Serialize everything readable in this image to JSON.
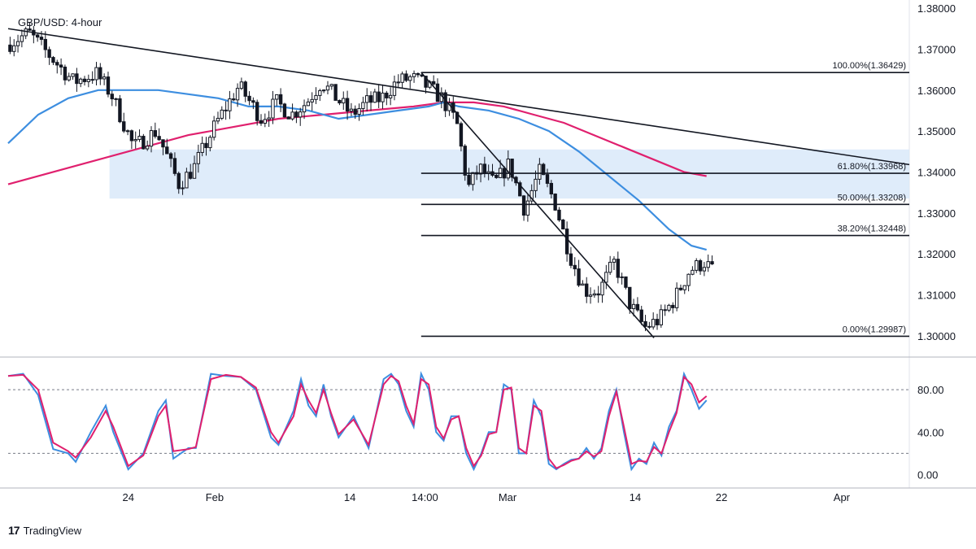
{
  "header": {
    "title": "GBP/USD: 4-hour"
  },
  "brand": {
    "logo_mark": "17",
    "name": "TradingView"
  },
  "colors": {
    "candle": "#131722",
    "ma_fast": "#3d8ee0",
    "ma_slow": "#e0206e",
    "zone": "#d7e7f9",
    "stoch_k": "#3d8ee0",
    "stoch_d": "#e0206e",
    "grid_line": "#131722"
  },
  "chart_data": [
    {
      "type": "candlestick",
      "ylim": [
        1.295,
        1.382
      ],
      "xlim": [
        0,
        120
      ],
      "y_ticks": [
        "1.38000",
        "1.37000",
        "1.36000",
        "1.35000",
        "1.34000",
        "1.33000",
        "1.32000",
        "1.31000",
        "1.30000"
      ],
      "y_tick_values": [
        1.38,
        1.37,
        1.36,
        1.35,
        1.34,
        1.33,
        1.32,
        1.31,
        1.3
      ],
      "x_ticks": [
        {
          "label": "24",
          "x": 16
        },
        {
          "label": "Feb",
          "x": 27.5
        },
        {
          "label": "14",
          "x": 45.5
        },
        {
          "label": "14:00",
          "x": 55.5
        },
        {
          "label": "Mar",
          "x": 66.5
        },
        {
          "label": "14",
          "x": 83.5
        },
        {
          "label": "22",
          "x": 95
        },
        {
          "label": "Apr",
          "x": 111
        }
      ],
      "price_anchors": [
        [
          0,
          1.371
        ],
        [
          3,
          1.374
        ],
        [
          6,
          1.368
        ],
        [
          9,
          1.362
        ],
        [
          12,
          1.364
        ],
        [
          14,
          1.359
        ],
        [
          17,
          1.346
        ],
        [
          20,
          1.35
        ],
        [
          23,
          1.337
        ],
        [
          25,
          1.341
        ],
        [
          28,
          1.352
        ],
        [
          31,
          1.361
        ],
        [
          34,
          1.353
        ],
        [
          36,
          1.357
        ],
        [
          38,
          1.354
        ],
        [
          40,
          1.357
        ],
        [
          42,
          1.362
        ],
        [
          44,
          1.358
        ],
        [
          46,
          1.354
        ],
        [
          48,
          1.357
        ],
        [
          50,
          1.358
        ],
        [
          52,
          1.362
        ],
        [
          54,
          1.363
        ],
        [
          56,
          1.361
        ],
        [
          58,
          1.358
        ],
        [
          60,
          1.352
        ],
        [
          61.5,
          1.336
        ],
        [
          63,
          1.341
        ],
        [
          65,
          1.337
        ],
        [
          67,
          1.342
        ],
        [
          69,
          1.331
        ],
        [
          71,
          1.34
        ],
        [
          73,
          1.333
        ],
        [
          75,
          1.32
        ],
        [
          77,
          1.311
        ],
        [
          79,
          1.311
        ],
        [
          81,
          1.318
        ],
        [
          83,
          1.308
        ],
        [
          85,
          1.302
        ],
        [
          87,
          1.304
        ],
        [
          89,
          1.309
        ],
        [
          91,
          1.316
        ],
        [
          93,
          1.318
        ],
        [
          94,
          1.316
        ]
      ],
      "ma_fast": [
        [
          0,
          1.347
        ],
        [
          4,
          1.354
        ],
        [
          8,
          1.358
        ],
        [
          12,
          1.36
        ],
        [
          16,
          1.36
        ],
        [
          20,
          1.36
        ],
        [
          24,
          1.359
        ],
        [
          28,
          1.358
        ],
        [
          32,
          1.356
        ],
        [
          36,
          1.356
        ],
        [
          40,
          1.355
        ],
        [
          44,
          1.353
        ],
        [
          48,
          1.354
        ],
        [
          52,
          1.355
        ],
        [
          56,
          1.356
        ],
        [
          58,
          1.357
        ],
        [
          60,
          1.356
        ],
        [
          64,
          1.355
        ],
        [
          68,
          1.353
        ],
        [
          72,
          1.35
        ],
        [
          76,
          1.345
        ],
        [
          80,
          1.339
        ],
        [
          84,
          1.333
        ],
        [
          88,
          1.326
        ],
        [
          91,
          1.322
        ],
        [
          93,
          1.321
        ]
      ],
      "ma_slow": [
        [
          0,
          1.337
        ],
        [
          6,
          1.34
        ],
        [
          12,
          1.343
        ],
        [
          18,
          1.346
        ],
        [
          24,
          1.349
        ],
        [
          30,
          1.351
        ],
        [
          36,
          1.353
        ],
        [
          42,
          1.354
        ],
        [
          48,
          1.355
        ],
        [
          54,
          1.356
        ],
        [
          58,
          1.357
        ],
        [
          62,
          1.357
        ],
        [
          66,
          1.356
        ],
        [
          70,
          1.354
        ],
        [
          74,
          1.352
        ],
        [
          78,
          1.349
        ],
        [
          82,
          1.346
        ],
        [
          86,
          1.343
        ],
        [
          90,
          1.34
        ],
        [
          93,
          1.339
        ]
      ],
      "support_zone": {
        "x": [
          13.5,
          120
        ],
        "y": [
          1.3335,
          1.3455
        ]
      },
      "trendlines": [
        {
          "x": [
            0,
            120
          ],
          "y": [
            1.375,
            1.3418
          ]
        },
        {
          "x": [
            55,
            86
          ],
          "y": [
            1.3643,
            1.2995
          ]
        }
      ],
      "fib_levels": [
        {
          "label": "100.00%(1.36429)",
          "value": 1.36429,
          "x_start": 55
        },
        {
          "label": "61.80%(1.33968)",
          "value": 1.33968,
          "x_start": 55
        },
        {
          "label": "50.00%(1.33208)",
          "value": 1.33208,
          "x_start": 55
        },
        {
          "label": "38.20%(1.32448)",
          "value": 1.32448,
          "x_start": 55
        },
        {
          "label": "0.00%(1.29987)",
          "value": 1.29987,
          "x_start": 55
        }
      ],
      "fib_end_x": 120
    },
    {
      "type": "line",
      "name": "stochastic",
      "ylim": [
        -5,
        110
      ],
      "y_ticks": [
        "80.00",
        "40.00",
        "0.00"
      ],
      "y_tick_values": [
        80,
        40,
        0
      ],
      "dashed_levels": [
        80,
        20
      ],
      "k": [
        [
          0,
          93
        ],
        [
          2,
          95
        ],
        [
          4,
          75
        ],
        [
          6,
          24
        ],
        [
          8,
          20
        ],
        [
          9,
          12
        ],
        [
          11,
          40
        ],
        [
          13,
          65
        ],
        [
          14,
          40
        ],
        [
          16,
          5
        ],
        [
          18,
          20
        ],
        [
          20,
          60
        ],
        [
          21,
          70
        ],
        [
          22,
          15
        ],
        [
          24,
          25
        ],
        [
          25,
          25
        ],
        [
          27,
          95
        ],
        [
          29,
          93
        ],
        [
          31,
          92
        ],
        [
          33,
          80
        ],
        [
          35,
          35
        ],
        [
          36,
          28
        ],
        [
          38,
          60
        ],
        [
          39,
          90
        ],
        [
          40,
          65
        ],
        [
          41,
          55
        ],
        [
          42,
          85
        ],
        [
          43,
          55
        ],
        [
          44,
          35
        ],
        [
          46,
          55
        ],
        [
          48,
          25
        ],
        [
          50,
          90
        ],
        [
          51,
          95
        ],
        [
          52,
          85
        ],
        [
          53,
          60
        ],
        [
          54,
          45
        ],
        [
          55,
          95
        ],
        [
          56,
          80
        ],
        [
          57,
          40
        ],
        [
          58,
          32
        ],
        [
          59,
          55
        ],
        [
          60,
          55
        ],
        [
          61,
          20
        ],
        [
          62,
          5
        ],
        [
          63,
          20
        ],
        [
          64,
          40
        ],
        [
          65,
          40
        ],
        [
          66,
          85
        ],
        [
          67,
          80
        ],
        [
          68,
          20
        ],
        [
          69,
          20
        ],
        [
          70,
          70
        ],
        [
          71,
          55
        ],
        [
          72,
          10
        ],
        [
          73,
          5
        ],
        [
          74,
          10
        ],
        [
          75,
          14
        ],
        [
          76,
          15
        ],
        [
          77,
          25
        ],
        [
          78,
          15
        ],
        [
          79,
          25
        ],
        [
          80,
          60
        ],
        [
          81,
          80
        ],
        [
          82,
          40
        ],
        [
          83,
          5
        ],
        [
          84,
          15
        ],
        [
          85,
          10
        ],
        [
          86,
          30
        ],
        [
          87,
          18
        ],
        [
          88,
          45
        ],
        [
          89,
          60
        ],
        [
          90,
          95
        ],
        [
          91,
          80
        ],
        [
          92,
          62
        ],
        [
          93,
          70
        ]
      ],
      "d": [
        [
          0,
          93
        ],
        [
          2,
          94
        ],
        [
          4,
          80
        ],
        [
          6,
          30
        ],
        [
          8,
          22
        ],
        [
          9,
          16
        ],
        [
          11,
          35
        ],
        [
          13,
          60
        ],
        [
          14,
          45
        ],
        [
          16,
          8
        ],
        [
          18,
          18
        ],
        [
          20,
          55
        ],
        [
          21,
          65
        ],
        [
          22,
          22
        ],
        [
          24,
          24
        ],
        [
          25,
          26
        ],
        [
          27,
          90
        ],
        [
          29,
          94
        ],
        [
          31,
          92
        ],
        [
          33,
          82
        ],
        [
          35,
          40
        ],
        [
          36,
          30
        ],
        [
          38,
          55
        ],
        [
          39,
          85
        ],
        [
          40,
          70
        ],
        [
          41,
          58
        ],
        [
          42,
          80
        ],
        [
          43,
          58
        ],
        [
          44,
          38
        ],
        [
          46,
          52
        ],
        [
          48,
          28
        ],
        [
          50,
          85
        ],
        [
          51,
          93
        ],
        [
          52,
          88
        ],
        [
          53,
          65
        ],
        [
          54,
          48
        ],
        [
          55,
          90
        ],
        [
          56,
          85
        ],
        [
          57,
          45
        ],
        [
          58,
          34
        ],
        [
          59,
          52
        ],
        [
          60,
          55
        ],
        [
          61,
          25
        ],
        [
          62,
          8
        ],
        [
          63,
          18
        ],
        [
          64,
          38
        ],
        [
          65,
          40
        ],
        [
          66,
          80
        ],
        [
          67,
          82
        ],
        [
          68,
          25
        ],
        [
          69,
          20
        ],
        [
          70,
          65
        ],
        [
          71,
          60
        ],
        [
          72,
          15
        ],
        [
          73,
          6
        ],
        [
          74,
          9
        ],
        [
          75,
          13
        ],
        [
          76,
          15
        ],
        [
          77,
          22
        ],
        [
          78,
          17
        ],
        [
          79,
          22
        ],
        [
          80,
          55
        ],
        [
          81,
          78
        ],
        [
          82,
          45
        ],
        [
          83,
          10
        ],
        [
          84,
          13
        ],
        [
          85,
          12
        ],
        [
          86,
          26
        ],
        [
          87,
          20
        ],
        [
          88,
          40
        ],
        [
          89,
          58
        ],
        [
          90,
          92
        ],
        [
          91,
          85
        ],
        [
          92,
          68
        ],
        [
          93,
          74
        ]
      ]
    }
  ]
}
